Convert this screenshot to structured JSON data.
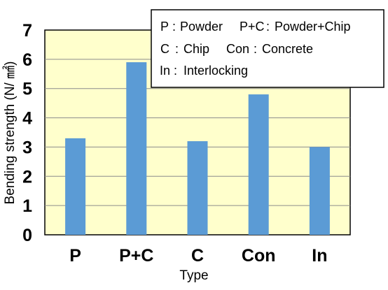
{
  "chart_data": {
    "type": "bar",
    "categories": [
      "P",
      "P+C",
      "C",
      "Con",
      "In"
    ],
    "values": [
      3.3,
      5.9,
      3.2,
      4.8,
      3.0
    ],
    "xlabel": "Type",
    "ylabel": "Bending strength (N/ ㎟)",
    "ylim": [
      0,
      7
    ],
    "yticks": [
      "0",
      "1",
      "2",
      "3",
      "4",
      "5",
      "6",
      "7"
    ],
    "grid": true,
    "legend_position": "top-right",
    "legend": [
      {
        "key": "P",
        "desc": "Powder"
      },
      {
        "key": "P+C",
        "desc": "Powder+Chip"
      },
      {
        "key": "C",
        "desc": "Chip"
      },
      {
        "key": "Con",
        "desc": "Concrete"
      },
      {
        "key": "In",
        "desc": "Interlocking"
      }
    ],
    "colors": {
      "bar": "#5b9bd5",
      "plot_background": "#ffffcc",
      "grid": "#8c8c8c"
    }
  }
}
